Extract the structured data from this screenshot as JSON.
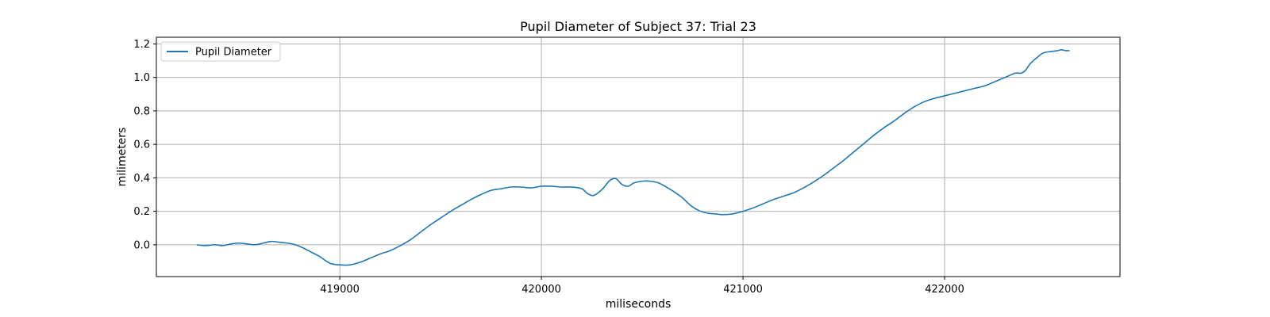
{
  "chart_data": {
    "type": "line",
    "title": "Pupil Diameter of Subject 37: Trial 23",
    "xlabel": "miliseconds",
    "ylabel": "milimeters",
    "xlim": [
      418090,
      422870
    ],
    "ylim": [
      -0.19,
      1.24
    ],
    "xticks": [
      419000,
      420000,
      421000,
      422000
    ],
    "yticks": [
      0.0,
      0.2,
      0.4,
      0.6,
      0.8,
      1.0,
      1.2
    ],
    "ytick_labels": [
      "0.0",
      "0.2",
      "0.4",
      "0.6",
      "0.8",
      "1.0",
      "1.2"
    ],
    "grid": true,
    "legend": {
      "position": "top-left"
    },
    "colors": {
      "line": "#1f77b4",
      "grid": "#b0b0b0",
      "axes": "#000000"
    },
    "series": [
      {
        "name": "Pupil Diameter",
        "x": [
          418290,
          418330,
          418380,
          418420,
          418460,
          418500,
          418540,
          418580,
          418620,
          418660,
          418700,
          418740,
          418780,
          418820,
          418860,
          418900,
          418950,
          419000,
          419050,
          419100,
          419150,
          419200,
          419250,
          419300,
          419350,
          419400,
          419450,
          419500,
          419550,
          419600,
          419650,
          419700,
          419750,
          419800,
          419850,
          419900,
          419950,
          420000,
          420050,
          420100,
          420150,
          420200,
          420230,
          420260,
          420300,
          420340,
          420370,
          420400,
          420430,
          420460,
          420500,
          420540,
          420580,
          420620,
          420660,
          420700,
          420740,
          420780,
          420820,
          420860,
          420900,
          420950,
          421000,
          421050,
          421100,
          421150,
          421200,
          421250,
          421300,
          421350,
          421400,
          421450,
          421500,
          421550,
          421600,
          421650,
          421700,
          421750,
          421800,
          421850,
          421900,
          421950,
          422000,
          422050,
          422100,
          422150,
          422200,
          422250,
          422300,
          422350,
          422380,
          422400,
          422420,
          422440,
          422460,
          422480,
          422500,
          422530,
          422560,
          422580,
          422600,
          422620
        ],
        "values": [
          0.0,
          -0.005,
          0.0,
          -0.005,
          0.005,
          0.01,
          0.005,
          0.0,
          0.01,
          0.02,
          0.015,
          0.01,
          0.0,
          -0.02,
          -0.045,
          -0.07,
          -0.11,
          -0.12,
          -0.12,
          -0.105,
          -0.08,
          -0.055,
          -0.035,
          -0.005,
          0.03,
          0.075,
          0.12,
          0.16,
          0.2,
          0.235,
          0.27,
          0.3,
          0.325,
          0.335,
          0.345,
          0.345,
          0.34,
          0.35,
          0.35,
          0.345,
          0.345,
          0.335,
          0.305,
          0.295,
          0.33,
          0.385,
          0.395,
          0.36,
          0.35,
          0.37,
          0.38,
          0.38,
          0.37,
          0.345,
          0.315,
          0.28,
          0.235,
          0.205,
          0.19,
          0.185,
          0.18,
          0.185,
          0.2,
          0.22,
          0.245,
          0.27,
          0.29,
          0.31,
          0.34,
          0.375,
          0.415,
          0.46,
          0.505,
          0.555,
          0.605,
          0.655,
          0.7,
          0.74,
          0.785,
          0.825,
          0.855,
          0.875,
          0.89,
          0.905,
          0.92,
          0.935,
          0.95,
          0.975,
          1.0,
          1.025,
          1.025,
          1.04,
          1.075,
          1.1,
          1.12,
          1.14,
          1.15,
          1.155,
          1.16,
          1.165,
          1.16,
          1.16
        ]
      }
    ]
  }
}
